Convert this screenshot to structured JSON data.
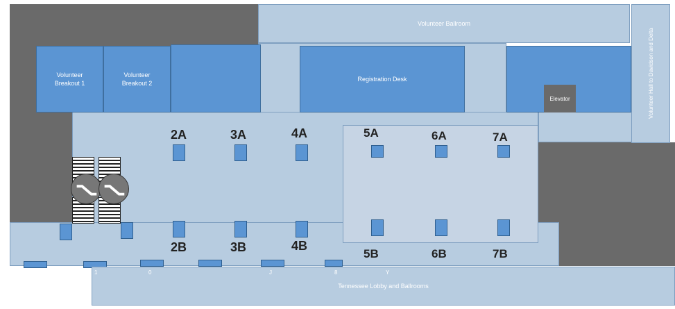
{
  "rooms": {
    "volunteer_ballroom": "Volunteer Ballroom",
    "breakout_1": "Volunteer\nBreakout 1",
    "breakout_2": "Volunteer\nBreakout 2",
    "registration": "Registration Desk",
    "elevator": "Elevator",
    "hall_to_davidson": "Volunteer Hall to Davidson and Delta",
    "tennessee_lobby": "Tennessee Lobby and Ballrooms"
  },
  "booths": {
    "b2a": "2A",
    "b3a": "3A",
    "b4a": "4A",
    "b5a": "5A",
    "b6a": "6A",
    "b7a": "7A",
    "b2b": "2B",
    "b3b": "3B",
    "b4b": "4B",
    "b5b": "5B",
    "b6b": "6B",
    "b7b": "7B"
  },
  "bottom_marks": [
    "1",
    "0",
    "J",
    "8",
    "Y"
  ],
  "colors": {
    "floor": "#b7cce0",
    "room": "#5b95d3",
    "dark_area": "#6a6a6a"
  }
}
